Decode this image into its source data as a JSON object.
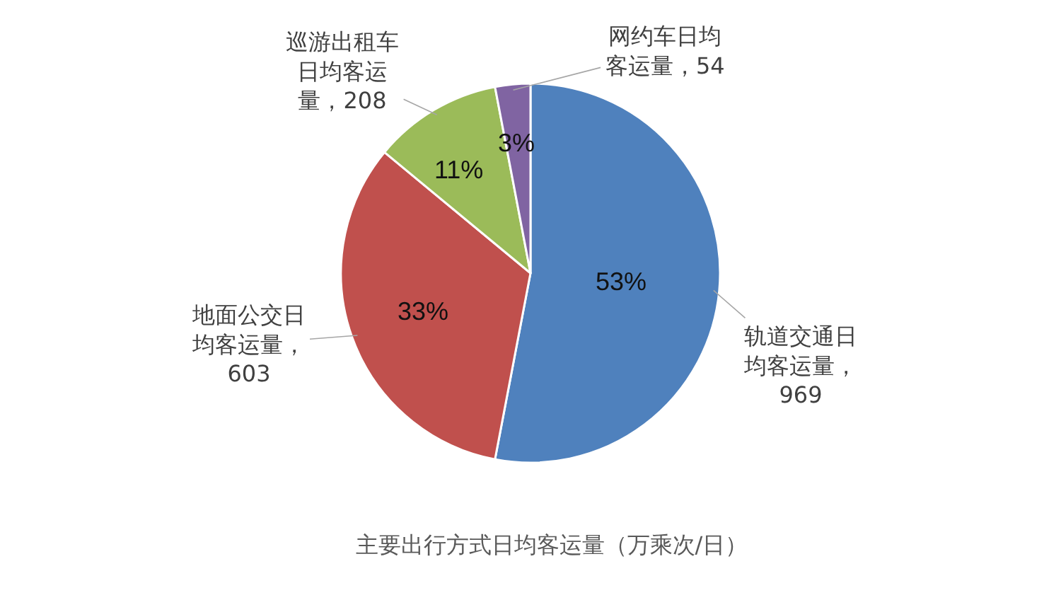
{
  "chart_data": {
    "type": "pie",
    "title": "主要出行方式日均客运量（万乘次/日）",
    "categories": [
      "轨道交通日均客运量，969",
      "地面公交日均客运量，603",
      "巡游出租车日均客运量，208",
      "网约车日均客运量，54"
    ],
    "values": [
      53,
      33,
      11,
      3
    ],
    "colors": [
      "#4f81bd",
      "#c0504d",
      "#9bbb59",
      "#8064a2"
    ],
    "value_labels": [
      "53%",
      "33%",
      "11%",
      "3%"
    ],
    "legend": false
  }
}
